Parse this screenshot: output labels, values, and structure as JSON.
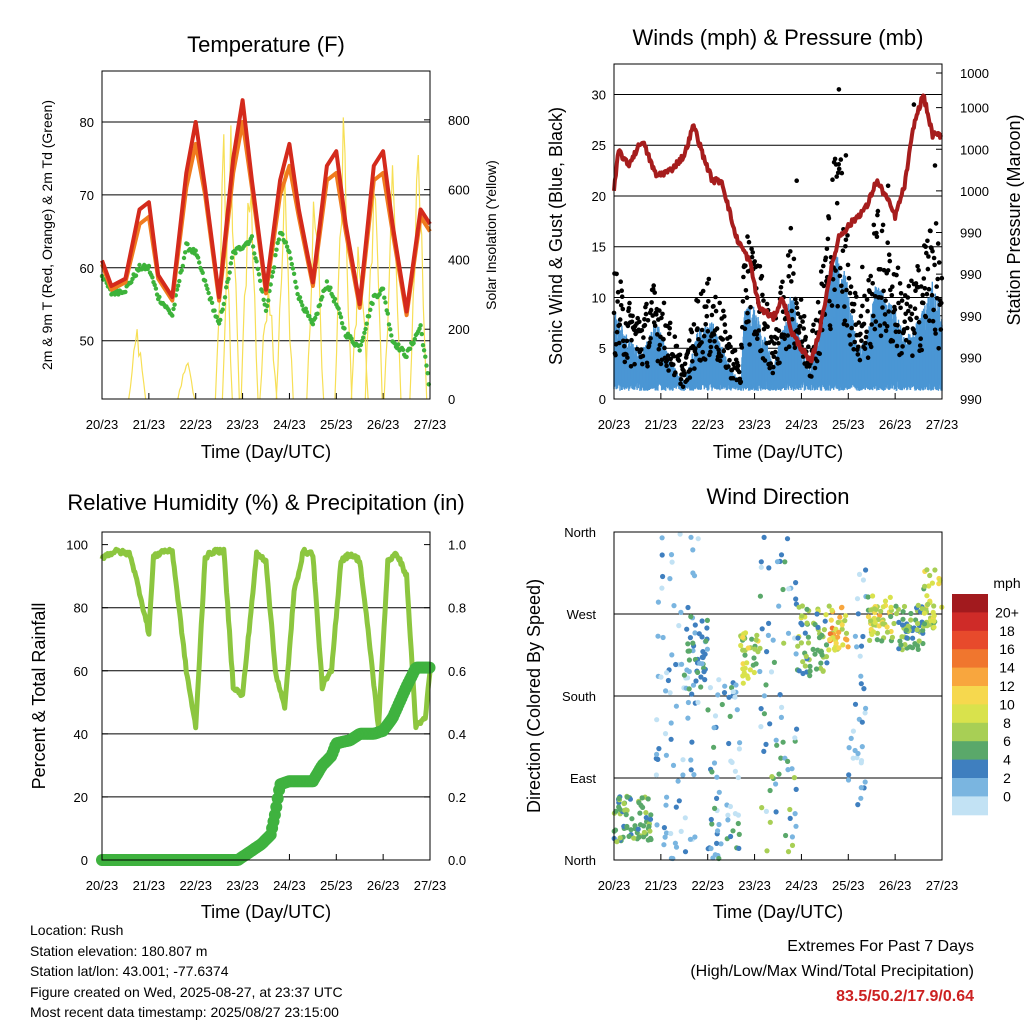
{
  "x_ticks": [
    "20/23",
    "21/23",
    "22/23",
    "23/23",
    "24/23",
    "25/23",
    "26/23",
    "27/23"
  ],
  "chart_data": [
    {
      "type": "line",
      "title": "Temperature (F)",
      "xlabel": "Time (Day/UTC)",
      "ylabel": "2m & 9m T (Red, Orange) & 2m Td (Green)",
      "y2label": "Solar Insolation (Yellow)",
      "x_ticks": [
        "20/23",
        "21/23",
        "22/23",
        "23/23",
        "24/23",
        "25/23",
        "26/23",
        "27/23"
      ],
      "ylim": [
        42,
        87
      ],
      "yticks": [
        "50",
        "60",
        "70",
        "80"
      ],
      "y2lim": [
        0,
        940
      ],
      "y2ticks": [
        "0",
        "200",
        "400",
        "600",
        "800"
      ],
      "series": [
        {
          "x": [
            0,
            0.2,
            0.5,
            0.8,
            1.0,
            1.2,
            1.5,
            1.8,
            2.0,
            2.2,
            2.5,
            2.8,
            3.0,
            3.2,
            3.5,
            3.8,
            4.0,
            4.2,
            4.5,
            4.8,
            5.0,
            5.2,
            5.5,
            5.8,
            6.0,
            6.2,
            6.5,
            6.8,
            7.0
          ],
          "values": [
            61,
            57.5,
            58.5,
            68,
            69,
            59,
            56,
            73,
            80,
            71,
            56,
            75,
            83,
            72,
            57,
            72,
            77,
            68,
            58,
            74,
            76,
            66,
            55,
            74,
            76,
            66,
            54,
            68,
            66
          ]
        },
        {
          "x": [
            0,
            0.2,
            0.5,
            0.8,
            1.0,
            1.2,
            1.5,
            1.8,
            2.0,
            2.2,
            2.5,
            2.8,
            3.0,
            3.2,
            3.5,
            3.8,
            4.0,
            4.2,
            4.5,
            4.8,
            5.0,
            5.2,
            5.5,
            5.8,
            6.0,
            6.2,
            6.5,
            6.8,
            7.0
          ],
          "values": [
            60.5,
            57,
            58,
            66,
            67,
            58.5,
            55.5,
            71,
            77,
            70,
            55.5,
            73,
            80,
            71,
            56.5,
            70,
            74,
            67,
            57.5,
            72,
            73,
            65,
            54.5,
            72,
            73,
            65,
            53.5,
            67,
            65
          ]
        },
        {
          "x": [
            0,
            0.2,
            0.5,
            0.8,
            1.0,
            1.2,
            1.5,
            1.8,
            2.0,
            2.2,
            2.5,
            2.8,
            3.0,
            3.2,
            3.5,
            3.8,
            4.0,
            4.2,
            4.5,
            4.8,
            5.0,
            5.2,
            5.5,
            5.8,
            6.0,
            6.2,
            6.5,
            6.8,
            7.0
          ],
          "values": [
            59,
            56.5,
            57,
            60,
            60,
            56,
            53.5,
            63,
            62,
            58,
            52,
            62,
            63,
            64,
            54,
            65,
            62,
            56,
            52,
            58,
            55,
            51,
            49,
            56,
            57,
            50,
            48,
            52,
            43
          ]
        }
      ],
      "solar": {
        "peak_x": [
          0.75,
          1.8,
          2.6,
          2.75,
          3.15,
          3.55,
          3.9,
          4.55,
          5.15,
          5.5,
          5.8,
          6.2,
          6.75
        ],
        "peak_values": [
          230,
          140,
          800,
          870,
          840,
          460,
          700,
          720,
          880,
          560,
          810,
          780,
          900
        ]
      }
    },
    {
      "type": "scatter",
      "title": "Winds (mph) & Pressure (mb)",
      "xlabel": "Time (Day/UTC)",
      "ylabel": "Sonic Wind & Gust (Blue, Black)",
      "y2label": "Station Pressure (Maroon)",
      "x_ticks": [
        "20/23",
        "21/23",
        "22/23",
        "23/23",
        "24/23",
        "25/23",
        "26/23",
        "27/23"
      ],
      "ylim": [
        0,
        33
      ],
      "yticks": [
        "0",
        "5",
        "10",
        "15",
        "20",
        "25",
        "30"
      ],
      "y2ticks": [
        "990",
        "990",
        "990",
        "990",
        "990",
        "1000",
        "1000",
        "1000",
        "1000"
      ],
      "wind_envelope": {
        "x": [
          0,
          0.3,
          0.6,
          0.9,
          1.2,
          1.5,
          1.8,
          2.1,
          2.4,
          2.7,
          2.8,
          3.0,
          3.2,
          3.4,
          3.6,
          3.8,
          4.0,
          4.2,
          4.4,
          4.6,
          4.8,
          5.0,
          5.2,
          5.4,
          5.6,
          5.8,
          6.0,
          6.2,
          6.4,
          6.6,
          6.8,
          7.0
        ],
        "values": [
          9,
          6,
          5,
          8,
          4,
          1.5,
          7,
          8,
          4,
          1.5,
          10,
          9,
          7,
          3,
          7,
          11,
          5,
          3,
          7,
          13,
          15,
          11,
          5,
          6,
          12,
          10,
          9,
          6,
          7,
          9,
          12,
          8
        ]
      },
      "gust_envelope": {
        "x": [
          0,
          0.3,
          0.6,
          0.9,
          1.2,
          1.5,
          1.8,
          2.1,
          2.4,
          2.7,
          2.8,
          3.0,
          3.2,
          3.4,
          3.6,
          3.8,
          4.0,
          4.2,
          4.4,
          4.6,
          4.8,
          5.0,
          5.2,
          5.4,
          5.6,
          5.8,
          6.0,
          6.2,
          6.4,
          6.6,
          6.8,
          7.0
        ],
        "values": [
          12,
          9,
          8,
          11,
          7,
          3,
          10,
          11,
          7,
          3,
          16,
          14,
          11,
          6,
          11,
          16,
          9,
          6,
          11,
          19,
          25,
          16,
          9,
          10,
          18,
          15,
          13,
          10,
          11,
          14,
          18,
          12
        ]
      },
      "pressure": {
        "x": [
          0,
          0.1,
          0.3,
          0.6,
          0.9,
          1.2,
          1.5,
          1.7,
          1.9,
          2.1,
          2.3,
          2.6,
          2.9,
          3.1,
          3.4,
          3.6,
          3.8,
          4.0,
          4.2,
          4.4,
          4.6,
          4.8,
          5.1,
          5.4,
          5.6,
          5.8,
          6.0,
          6.2,
          6.4,
          6.6,
          6.8,
          7.0
        ],
        "values": [
          20.5,
          24.5,
          23,
          25.5,
          22,
          22.5,
          24,
          27,
          24,
          21.5,
          21.5,
          16,
          13.5,
          9,
          8,
          10,
          6.5,
          5,
          3.5,
          7,
          12,
          16,
          17.5,
          19,
          21.5,
          20,
          18,
          21,
          27,
          30,
          26,
          26
        ]
      },
      "spikes": {
        "x": [
          2.85,
          3.9,
          4.55,
          4.8,
          4.95,
          5.3,
          5.85,
          6.4,
          6.65,
          6.85
        ],
        "values": [
          16,
          21.5,
          12,
          30.5,
          24,
          13,
          21,
          29,
          15,
          23
        ]
      }
    },
    {
      "type": "line",
      "title": "Relative Humidity (%) & Precipitation (in)",
      "xlabel": "Time (Day/UTC)",
      "ylabel": "Percent & Total Rainfall",
      "x_ticks": [
        "20/23",
        "21/23",
        "22/23",
        "23/23",
        "24/23",
        "25/23",
        "26/23",
        "27/23"
      ],
      "ylim": [
        0,
        100
      ],
      "yticks": [
        "0",
        "20",
        "40",
        "60",
        "80",
        "100"
      ],
      "y2ticks": [
        "0.0",
        "0.2",
        "0.4",
        "0.6",
        "0.8",
        "1.0"
      ],
      "rh": {
        "x": [
          0,
          0.3,
          0.6,
          0.8,
          1.0,
          1.1,
          1.3,
          1.5,
          1.8,
          2.0,
          2.2,
          2.4,
          2.6,
          2.8,
          3.0,
          3.3,
          3.5,
          3.7,
          3.9,
          4.1,
          4.3,
          4.5,
          4.7,
          4.9,
          5.1,
          5.3,
          5.5,
          5.7,
          5.9,
          6.1,
          6.3,
          6.5,
          6.7,
          6.9,
          7.0
        ],
        "values": [
          96,
          98,
          97,
          85,
          72,
          96,
          98,
          98,
          60,
          42,
          96,
          98,
          98,
          55,
          52,
          97,
          95,
          60,
          48,
          85,
          98,
          97,
          55,
          60,
          95,
          97,
          95,
          70,
          42,
          95,
          97,
          90,
          42,
          45,
          60
        ]
      },
      "rainfall": {
        "x": [
          0,
          1,
          2,
          2.9,
          3.1,
          3.2,
          3.4,
          3.6,
          3.7,
          3.8,
          4.0,
          4.5,
          4.7,
          4.9,
          5.0,
          5.3,
          5.5,
          5.8,
          6.0,
          6.2,
          6.35,
          6.5,
          6.7,
          6.9,
          7.0
        ],
        "values": [
          0.0,
          0.0,
          0.0,
          0.0,
          0.02,
          0.03,
          0.05,
          0.08,
          0.15,
          0.24,
          0.25,
          0.25,
          0.3,
          0.33,
          0.37,
          0.38,
          0.4,
          0.4,
          0.41,
          0.45,
          0.5,
          0.55,
          0.61,
          0.61,
          0.61
        ]
      }
    },
    {
      "type": "scatter",
      "title": "Wind Direction",
      "xlabel": "Time (Day/UTC)",
      "ylabel": "Direction (Colored By Speed)",
      "x_ticks": [
        "20/23",
        "21/23",
        "22/23",
        "23/23",
        "24/23",
        "25/23",
        "26/23",
        "27/23"
      ],
      "ylim": [
        0,
        360
      ],
      "yticks": [
        "North",
        "East",
        "South",
        "West",
        "North"
      ],
      "legend": {
        "unit": "mph",
        "labels": [
          "20+",
          "18",
          "16",
          "14",
          "12",
          "10",
          "8",
          "6",
          "4",
          "2",
          "0"
        ],
        "colors": [
          "#a21a1e",
          "#cf2b28",
          "#e74a2c",
          "#f0762e",
          "#f8a63e",
          "#f6d84e",
          "#d9e24c",
          "#a8cf55",
          "#5aa86a",
          "#3f7fbf",
          "#7ab5e0",
          "#c2e2f4"
        ]
      },
      "clusters": [
        {
          "x": [
            0,
            0.8
          ],
          "dir": [
            20,
            70
          ],
          "speed": [
            4,
            8
          ]
        },
        {
          "x": [
            0.9,
            1.8
          ],
          "dir": [
            0,
            360
          ],
          "speed": [
            0,
            4
          ]
        },
        {
          "x": [
            1.5,
            2.0
          ],
          "dir": [
            180,
            270
          ],
          "speed": [
            2,
            6
          ]
        },
        {
          "x": [
            2.0,
            2.7
          ],
          "dir": [
            0,
            200
          ],
          "speed": [
            0,
            6
          ]
        },
        {
          "x": [
            2.7,
            3.1
          ],
          "dir": [
            190,
            250
          ],
          "speed": [
            6,
            12
          ]
        },
        {
          "x": [
            3.1,
            3.9
          ],
          "dir": [
            0,
            360
          ],
          "speed": [
            0,
            8
          ]
        },
        {
          "x": [
            3.9,
            4.6
          ],
          "dir": [
            200,
            280
          ],
          "speed": [
            4,
            10
          ]
        },
        {
          "x": [
            4.6,
            5.0
          ],
          "dir": [
            230,
            280
          ],
          "speed": [
            8,
            16
          ]
        },
        {
          "x": [
            5.0,
            5.4
          ],
          "dir": [
            60,
            330
          ],
          "speed": [
            0,
            4
          ]
        },
        {
          "x": [
            5.4,
            6.0
          ],
          "dir": [
            240,
            290
          ],
          "speed": [
            6,
            14
          ]
        },
        {
          "x": [
            6.0,
            6.6
          ],
          "dir": [
            230,
            280
          ],
          "speed": [
            4,
            8
          ]
        },
        {
          "x": [
            6.6,
            7.0
          ],
          "dir": [
            250,
            320
          ],
          "speed": [
            6,
            12
          ]
        }
      ]
    }
  ],
  "footer": {
    "location": "Location: Rush",
    "elevation": "Station elevation: 180.807 m",
    "latlon": "Station lat/lon: 43.001; -77.6374",
    "created": "Figure created on Wed, 2025-08-27, at 23:37 UTC",
    "recent": "Most recent data timestamp: 2025/08/27 23:15:00",
    "extremes_title": "Extremes For Past 7 Days",
    "extremes_sub": "(High/Low/Max Wind/Total Precipitation)",
    "extremes_values": "83.5/50.2/17.9/0.64"
  },
  "colors": {
    "red": "#d42a1c",
    "orange": "#f07b1e",
    "green": "#3db33a",
    "yellow": "#f7df55",
    "blue": "#4a96d4",
    "black": "#000000",
    "maroon": "#a61d1d",
    "rh_green": "#8cc63f",
    "rain_green": "#3fb23f"
  }
}
